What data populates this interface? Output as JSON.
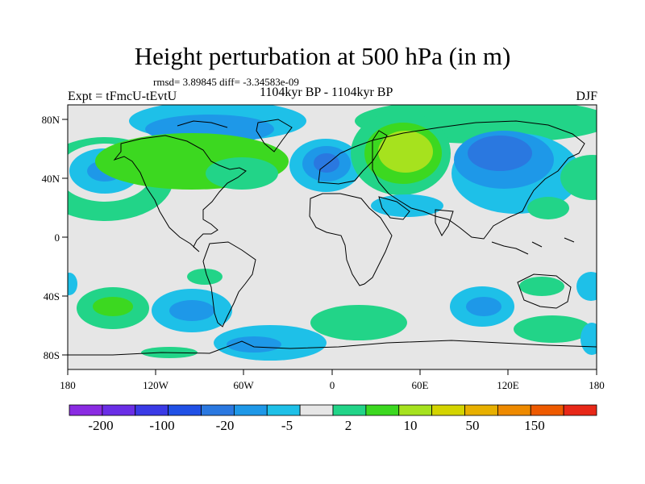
{
  "title": "Height perturbation at 500 hPa (in m)",
  "stats": {
    "rmsd": "rmsd= 3.89845 diff= -3.34583e-09"
  },
  "experiment": "Expt = tFmcU-tEvtU",
  "period": "1104kyr BP - 1104kyr BP",
  "season": "DJF",
  "lat_ticks": [
    "80N",
    "40N",
    "0",
    "40S",
    "80S"
  ],
  "lon_ticks": [
    "180",
    "120W",
    "60W",
    "0",
    "60E",
    "120E",
    "180"
  ],
  "colorbar": {
    "colors": [
      "#8a2be2",
      "#6a2ee6",
      "#3a3ae6",
      "#2050e6",
      "#2a78e0",
      "#1e98e8",
      "#1ec0e8",
      "#e6e6e6",
      "#22d488",
      "#3cd820",
      "#a6e21e",
      "#d4d400",
      "#e8b000",
      "#ee8a00",
      "#ee5a00",
      "#e82818"
    ],
    "labels": [
      "-200",
      "-100",
      "-20",
      "-5",
      "2",
      "10",
      "50",
      "150"
    ]
  },
  "colors": {
    "neutral": "#e6e6e6",
    "cyan": "#1ec0e8",
    "mid_blue": "#1e98e8",
    "blue": "#2a78e0",
    "green_light": "#22d488",
    "green": "#3cd820",
    "yellow_green": "#a6e21e"
  }
}
